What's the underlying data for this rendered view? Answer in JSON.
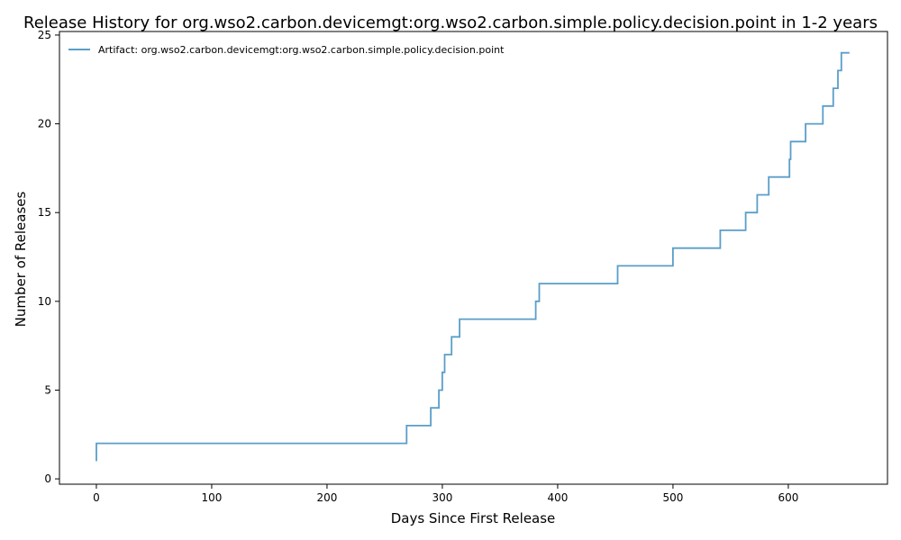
{
  "chart_data": {
    "type": "line",
    "step": "post",
    "title": "Release History for org.wso2.carbon.devicemgt:org.wso2.carbon.simple.policy.decision.point in 1-2 years",
    "xlabel": "Days Since First Release",
    "ylabel": "Number of Releases",
    "xlim": [
      -32,
      686
    ],
    "ylim": [
      -0.3,
      25.2
    ],
    "xticks": [
      0,
      100,
      200,
      300,
      400,
      500,
      600
    ],
    "yticks": [
      0,
      5,
      10,
      15,
      20,
      25
    ],
    "grid": false,
    "legend": "top-left",
    "series": [
      {
        "name": "Artifact: org.wso2.carbon.devicemgt:org.wso2.carbon.simple.policy.decision.point",
        "color": "#5a9ec9",
        "x": [
          0,
          0,
          269,
          290,
          297,
          300,
          302,
          308,
          315,
          381,
          384,
          452,
          500,
          541,
          563,
          573,
          583,
          601,
          602,
          615,
          630,
          639,
          643,
          646,
          653
        ],
        "y": [
          1,
          2,
          3,
          4,
          5,
          6,
          7,
          8,
          9,
          10,
          11,
          12,
          13,
          14,
          15,
          16,
          17,
          18,
          19,
          20,
          21,
          22,
          23,
          24,
          24
        ]
      }
    ]
  }
}
